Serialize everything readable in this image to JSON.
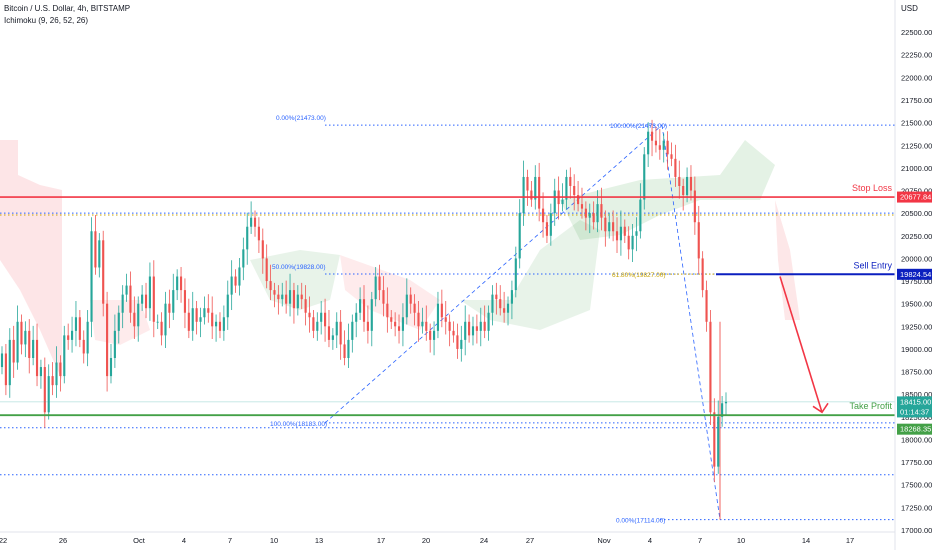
{
  "header": {
    "symbol": "Bitcoin / U.S. Dollar, 4h, BITSTAMP",
    "indicator": "Ichimoku (9, 26, 52, 26)"
  },
  "chart_data": {
    "type": "candlestick",
    "currency_label": "USD",
    "ylim": [
      17000,
      22700
    ],
    "y_ticks": [
      17000,
      17250,
      17500,
      17750,
      18000,
      18250,
      18500,
      18750,
      19000,
      19250,
      19500,
      19750,
      20000,
      20250,
      20500,
      20750,
      21000,
      21250,
      21500,
      21750,
      22000,
      22250,
      22500
    ],
    "x_labels": [
      "22",
      "26",
      "Oct",
      "4",
      "7",
      "10",
      "13",
      "17",
      "20",
      "24",
      "27",
      "Nov",
      "4",
      "7",
      "10",
      "14",
      "17"
    ],
    "levels": {
      "stop_loss": {
        "label": "Stop Loss",
        "value": 20677.84,
        "tag": "20677.84",
        "color": "#f23645"
      },
      "sell_entry": {
        "label": "Sell Entry",
        "value": 19824.54,
        "tag": "19824.54",
        "color": "#0b1fbf"
      },
      "take_profit": {
        "label": "Take Profit",
        "value": 18268.35,
        "tag": "18268.35",
        "color": "#43a047"
      }
    },
    "last_price": {
      "value": 18415.0,
      "tag": "18415.00",
      "countdown": "01:14:37",
      "color": "#26a69a"
    },
    "fib_labels": [
      "0.00%(21473.00)",
      "100.00%(21473.00)",
      "50.00%(19828.00)",
      "61.80%(19827.00)",
      "100.00%(18183.00)",
      "0.00%(17114.00)"
    ],
    "guide_lines": [
      21473.0,
      19828.0,
      18183.0,
      17114.0,
      17610.0,
      20500.0,
      20480.0
    ],
    "candles_close": [
      18950,
      18600,
      19100,
      18850,
      19300,
      19050,
      19200,
      18900,
      19100,
      18700,
      18800,
      18300,
      18700,
      18600,
      18850,
      18700,
      19150,
      19100,
      19200,
      19350,
      19100,
      18950,
      19300,
      20300,
      19900,
      20200,
      19500,
      18700,
      18900,
      19200,
      19400,
      19600,
      19700,
      19400,
      19250,
      19500,
      19600,
      19450,
      19800,
      19300,
      19300,
      19150,
      19500,
      19400,
      19650,
      19800,
      19650,
      19400,
      19200,
      19450,
      19300,
      19350,
      19450,
      19400,
      19250,
      19300,
      19200,
      19350,
      19600,
      19800,
      19700,
      19900,
      20100,
      20350,
      20450,
      20350,
      20200,
      20000,
      19750,
      19650,
      19600,
      19550,
      19600,
      19500,
      19650,
      19450,
      19600,
      19550,
      19400,
      19350,
      19200,
      19300,
      19400,
      19250,
      19100,
      19150,
      19300,
      19050,
      18900,
      19100,
      19300,
      19400,
      19550,
      19300,
      19200,
      19550,
      19800,
      19650,
      19500,
      19350,
      19300,
      19250,
      19200,
      19350,
      19600,
      19500,
      19400,
      19250,
      19300,
      19200,
      19100,
      19200,
      19500,
      19350,
      19300,
      19200,
      19150,
      19000,
      19100,
      19300,
      19150,
      19250,
      19200,
      19300,
      19200,
      19400,
      19600,
      19550,
      19450,
      19400,
      19500,
      19650,
      20000,
      20500,
      20900,
      20750,
      20650,
      20900,
      20550,
      20400,
      20250,
      20500,
      20750,
      20600,
      20650,
      20900,
      20800,
      20700,
      20600,
      20550,
      20450,
      20500,
      20400,
      20600,
      20450,
      20300,
      20400,
      20300,
      20200,
      20350,
      20250,
      20100,
      20250,
      20300,
      20650,
      21150,
      21400,
      21300,
      21250,
      21200,
      21300,
      21150,
      21100,
      20900,
      20800,
      20700,
      20900,
      20750,
      20400,
      20000,
      19650,
      19300,
      18300,
      17700,
      18250,
      18400,
      18415
    ],
    "candles_open": [
      18800,
      18950,
      18600,
      19100,
      18850,
      19300,
      19050,
      19200,
      18900,
      19100,
      18700,
      18800,
      18300,
      18700,
      18600,
      18850,
      18700,
      19150,
      19100,
      19200,
      19350,
      19100,
      18950,
      19300,
      20300,
      19900,
      20200,
      19500,
      18700,
      18900,
      19200,
      19400,
      19600,
      19700,
      19400,
      19250,
      19500,
      19600,
      19450,
      19800,
      19300,
      19300,
      19150,
      19500,
      19400,
      19650,
      19800,
      19650,
      19400,
      19200,
      19450,
      19300,
      19350,
      19450,
      19400,
      19250,
      19300,
      19200,
      19350,
      19600,
      19800,
      19700,
      19900,
      20100,
      20350,
      20450,
      20350,
      20200,
      20000,
      19750,
      19650,
      19600,
      19550,
      19600,
      19500,
      19650,
      19450,
      19600,
      19550,
      19400,
      19350,
      19200,
      19300,
      19400,
      19250,
      19100,
      19150,
      19300,
      19050,
      18900,
      19100,
      19300,
      19400,
      19550,
      19300,
      19200,
      19550,
      19800,
      19650,
      19500,
      19350,
      19300,
      19250,
      19200,
      19350,
      19600,
      19500,
      19400,
      19250,
      19300,
      19200,
      19100,
      19200,
      19500,
      19350,
      19300,
      19200,
      19150,
      19000,
      19100,
      19300,
      19150,
      19250,
      19200,
      19300,
      19200,
      19400,
      19600,
      19550,
      19450,
      19400,
      19500,
      19650,
      20000,
      20500,
      20900,
      20750,
      20650,
      20900,
      20550,
      20400,
      20250,
      20500,
      20750,
      20600,
      20650,
      20900,
      20800,
      20700,
      20600,
      20550,
      20450,
      20500,
      20400,
      20600,
      20450,
      20300,
      20400,
      20300,
      20200,
      20350,
      20250,
      20100,
      20250,
      20300,
      20650,
      21150,
      21400,
      21300,
      21250,
      21200,
      21300,
      21150,
      21100,
      20900,
      20800,
      20700,
      20900,
      20750,
      20400,
      20000,
      19650,
      19300,
      18300,
      17700,
      18250,
      18400
    ]
  }
}
